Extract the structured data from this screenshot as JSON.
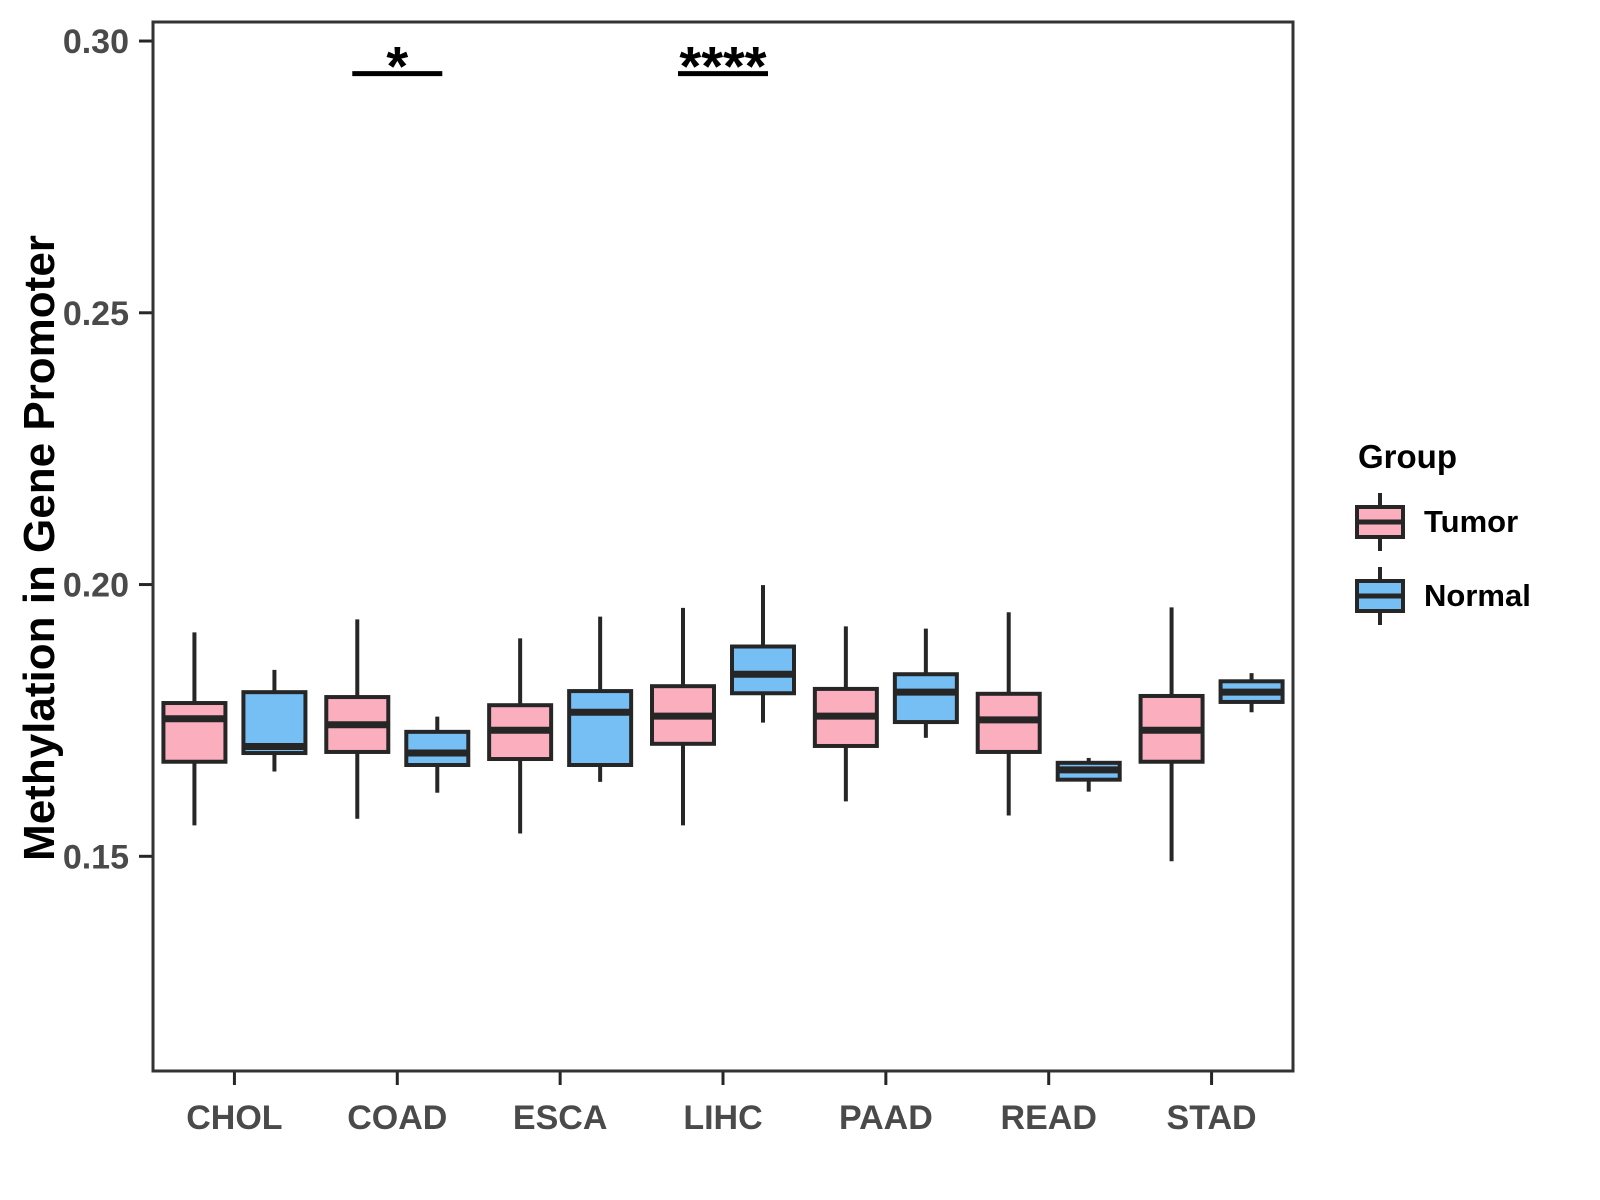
{
  "figure": {
    "y_axis": {
      "title": "Methylation in Gene Promoter"
    },
    "legend": {
      "title": "Group",
      "items": [
        {
          "label": "Tumor",
          "color": "#FBAFBE"
        },
        {
          "label": "Normal",
          "color": "#76BFF5"
        }
      ]
    }
  },
  "chart_data": {
    "type": "boxplot",
    "title": "",
    "xlabel": "",
    "ylabel": "Methylation in Gene Promoter",
    "categories": [
      "CHOL",
      "COAD",
      "ESCA",
      "LIHC",
      "PAAD",
      "READ",
      "STAD"
    ],
    "ylim": [
      0.1105,
      0.3035
    ],
    "yticks": [
      {
        "label": "0.15",
        "value": 0.15
      },
      {
        "label": "0.20",
        "value": 0.2
      },
      {
        "label": "0.25",
        "value": 0.25
      },
      {
        "label": "0.30",
        "value": 0.3
      }
    ],
    "grid": false,
    "legend_position": "right",
    "series": [
      {
        "name": "Tumor",
        "color": "#FBAFBE",
        "boxes": [
          {
            "min": 0.1557,
            "q1": 0.1674,
            "median": 0.1753,
            "q3": 0.1782,
            "max": 0.1912
          },
          {
            "min": 0.1569,
            "q1": 0.1692,
            "median": 0.1742,
            "q3": 0.1793,
            "max": 0.1936
          },
          {
            "min": 0.1542,
            "q1": 0.1679,
            "median": 0.1732,
            "q3": 0.1778,
            "max": 0.1901
          },
          {
            "min": 0.1557,
            "q1": 0.1707,
            "median": 0.1758,
            "q3": 0.1813,
            "max": 0.1957
          },
          {
            "min": 0.1601,
            "q1": 0.1703,
            "median": 0.1758,
            "q3": 0.1808,
            "max": 0.1923
          },
          {
            "min": 0.1575,
            "q1": 0.1692,
            "median": 0.1751,
            "q3": 0.1799,
            "max": 0.1949
          },
          {
            "min": 0.1491,
            "q1": 0.1674,
            "median": 0.1732,
            "q3": 0.1795,
            "max": 0.1958
          }
        ]
      },
      {
        "name": "Normal",
        "color": "#76BFF5",
        "boxes": [
          {
            "min": 0.1656,
            "q1": 0.169,
            "median": 0.1702,
            "q3": 0.1802,
            "max": 0.1843
          },
          {
            "min": 0.1617,
            "q1": 0.1668,
            "median": 0.169,
            "q3": 0.1729,
            "max": 0.1757
          },
          {
            "min": 0.1637,
            "q1": 0.1668,
            "median": 0.1765,
            "q3": 0.1804,
            "max": 0.1941
          },
          {
            "min": 0.1746,
            "q1": 0.18,
            "median": 0.1835,
            "q3": 0.1886,
            "max": 0.1999
          },
          {
            "min": 0.1718,
            "q1": 0.1747,
            "median": 0.1802,
            "q3": 0.1835,
            "max": 0.1919
          },
          {
            "min": 0.1619,
            "q1": 0.1641,
            "median": 0.1659,
            "q3": 0.1672,
            "max": 0.1681
          },
          {
            "min": 0.1765,
            "q1": 0.1784,
            "median": 0.1802,
            "q3": 0.1822,
            "max": 0.1837
          }
        ]
      }
    ],
    "annotations": [
      {
        "category": "COAD",
        "label": "*",
        "y": 0.294
      },
      {
        "category": "LIHC",
        "label": "****",
        "y": 0.294
      }
    ],
    "style": {
      "ink": "#262626",
      "panel_border": "#333333",
      "tick_label_color": "#4a4a4a"
    }
  }
}
